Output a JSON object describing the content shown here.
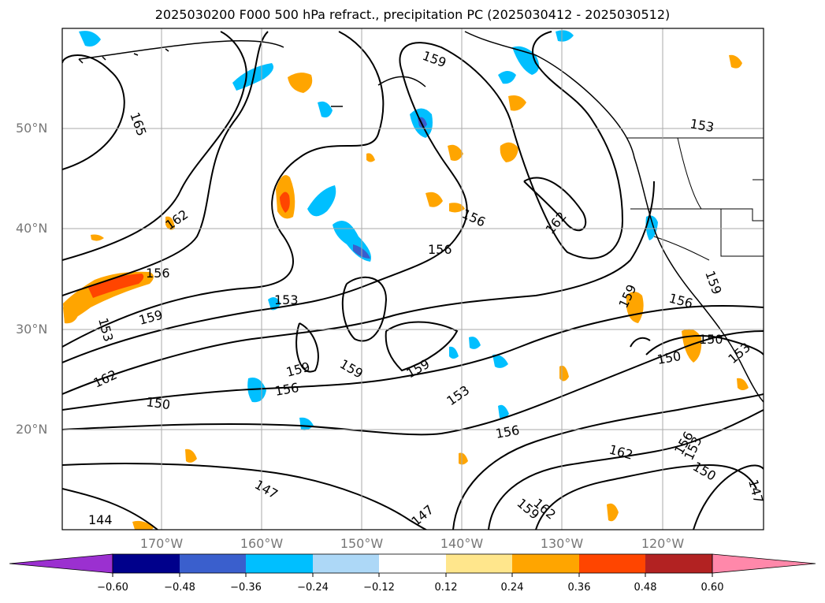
{
  "title": "2025030200 F000 500 hPa refract., precipitation PC (2025030412 - 2025030512)",
  "lat_labels": [
    {
      "text": "50°N",
      "value": 50
    },
    {
      "text": "40°N",
      "value": 40
    },
    {
      "text": "30°N",
      "value": 30
    },
    {
      "text": "20°N",
      "value": 20
    }
  ],
  "lon_labels": [
    {
      "text": "170°W",
      "value": -170
    },
    {
      "text": "160°W",
      "value": -160
    },
    {
      "text": "150°W",
      "value": -150
    },
    {
      "text": "140°W",
      "value": -140
    },
    {
      "text": "130°W",
      "value": -130
    },
    {
      "text": "120°W",
      "value": -120
    }
  ],
  "colorbar": {
    "ticks": [
      "−0.60",
      "−0.48",
      "−0.36",
      "−0.24",
      "−0.12",
      "0.12",
      "0.24",
      "0.36",
      "0.48",
      "0.60"
    ],
    "colors": [
      "#9b30d0",
      "#00008b",
      "#3a5fcd",
      "#00bfff",
      "#add8f7",
      "#ffffff",
      "#ffe68c",
      "#ffa500",
      "#ff4500",
      "#b22222",
      "#ff88aa"
    ]
  },
  "contour_labels": [
    "165",
    "162",
    "159",
    "156",
    "153",
    "150",
    "147",
    "144"
  ],
  "colors": {
    "grid": "#aaaaaa",
    "contour": "#000000",
    "axis_label": "#777777"
  }
}
